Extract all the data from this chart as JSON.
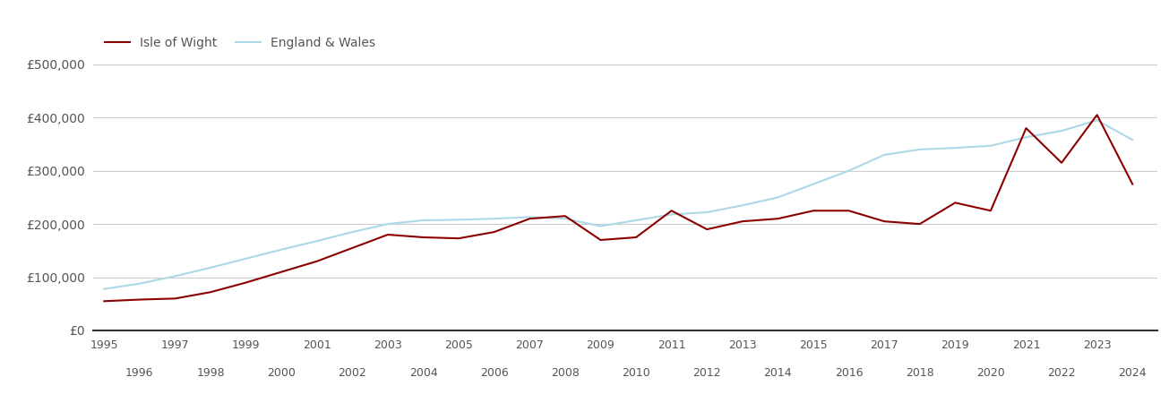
{
  "iow_years": [
    1995,
    1996,
    1997,
    1998,
    1999,
    2000,
    2001,
    2002,
    2003,
    2004,
    2005,
    2006,
    2007,
    2008,
    2009,
    2010,
    2011,
    2012,
    2013,
    2014,
    2015,
    2016,
    2017,
    2018,
    2019,
    2020,
    2021,
    2022,
    2023,
    2024
  ],
  "iow_values": [
    55000,
    58000,
    60000,
    72000,
    90000,
    110000,
    130000,
    155000,
    180000,
    175000,
    173000,
    185000,
    210000,
    215000,
    170000,
    175000,
    225000,
    190000,
    205000,
    210000,
    225000,
    225000,
    205000,
    200000,
    240000,
    225000,
    380000,
    315000,
    405000,
    275000
  ],
  "ew_years": [
    1995,
    1996,
    1997,
    1998,
    1999,
    2000,
    2001,
    2002,
    2003,
    2004,
    2005,
    2006,
    2007,
    2008,
    2009,
    2010,
    2011,
    2012,
    2013,
    2014,
    2015,
    2016,
    2017,
    2018,
    2019,
    2020,
    2021,
    2022,
    2023,
    2024
  ],
  "ew_values": [
    78000,
    88000,
    102000,
    118000,
    135000,
    152000,
    168000,
    185000,
    200000,
    207000,
    208000,
    210000,
    213000,
    210000,
    196000,
    207000,
    218000,
    222000,
    235000,
    250000,
    275000,
    300000,
    330000,
    340000,
    343000,
    347000,
    363000,
    375000,
    395000,
    358000
  ],
  "iow_color": "#8B0000",
  "ew_color": "#ADD8E6",
  "iow_label": "Isle of Wight",
  "ew_label": "England & Wales",
  "yticks": [
    0,
    100000,
    200000,
    300000,
    400000,
    500000
  ],
  "ylabels": [
    "£0",
    "£100,000",
    "£200,000",
    "£300,000",
    "£400,000",
    "£500,000"
  ],
  "ylim": [
    0,
    530000
  ],
  "xlim": [
    1994.7,
    2024.7
  ],
  "background_color": "#ffffff",
  "grid_color": "#cccccc",
  "linewidth": 1.5,
  "odd_years": [
    1995,
    1997,
    1999,
    2001,
    2003,
    2005,
    2007,
    2009,
    2011,
    2013,
    2015,
    2017,
    2019,
    2021,
    2023
  ],
  "even_years": [
    1996,
    1998,
    2000,
    2002,
    2004,
    2006,
    2008,
    2010,
    2012,
    2014,
    2016,
    2018,
    2020,
    2022,
    2024
  ]
}
